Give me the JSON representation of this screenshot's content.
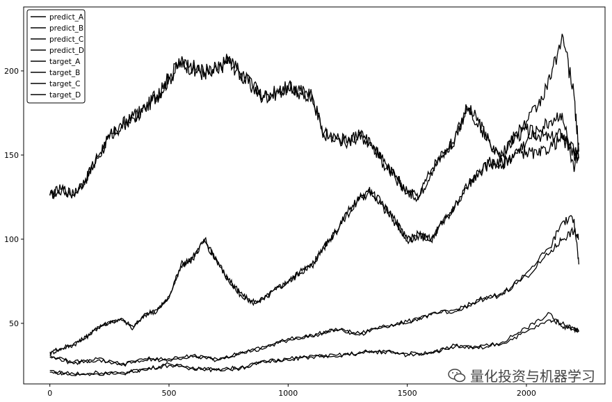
{
  "chart_data": {
    "type": "line",
    "title": "",
    "xlabel": "",
    "ylabel": "",
    "xlim": [
      -110,
      2330
    ],
    "ylim": [
      14,
      238
    ],
    "xticks": [
      0,
      500,
      1000,
      1500,
      2000
    ],
    "yticks": [
      50,
      100,
      150,
      200
    ],
    "grid": false,
    "legend_position": "top-left",
    "line_color": "#000000",
    "series": [
      {
        "name": "predict_A",
        "x": [
          0,
          50,
          100,
          150,
          200,
          250,
          300,
          350,
          400,
          450,
          500,
          550,
          600,
          650,
          700,
          750,
          800,
          850,
          900,
          950,
          1000,
          1050,
          1100,
          1150,
          1200,
          1250,
          1300,
          1350,
          1400,
          1450,
          1500,
          1550,
          1600,
          1650,
          1700,
          1750,
          1800,
          1850,
          1900,
          1950,
          2000,
          2050,
          2100,
          2150,
          2200,
          2220
        ],
        "values": [
          126,
          129,
          127,
          135,
          148,
          160,
          168,
          172,
          178,
          185,
          195,
          205,
          202,
          198,
          200,
          207,
          198,
          190,
          185,
          187,
          190,
          188,
          185,
          163,
          160,
          158,
          162,
          157,
          145,
          137,
          128,
          125,
          140,
          150,
          160,
          178,
          170,
          155,
          150,
          160,
          165,
          162,
          160,
          163,
          152,
          150
        ]
      },
      {
        "name": "predict_B",
        "x": [
          0,
          50,
          100,
          150,
          200,
          250,
          300,
          350,
          400,
          450,
          500,
          550,
          600,
          650,
          700,
          750,
          800,
          850,
          900,
          950,
          1000,
          1050,
          1100,
          1150,
          1200,
          1250,
          1300,
          1350,
          1400,
          1450,
          1500,
          1550,
          1600,
          1650,
          1700,
          1750,
          1800,
          1850,
          1900,
          1950,
          2000,
          2050,
          2100,
          2150,
          2200,
          2220
        ],
        "values": [
          32,
          35,
          37,
          42,
          47,
          51,
          52,
          48,
          55,
          58,
          65,
          85,
          88,
          100,
          88,
          75,
          68,
          62,
          65,
          70,
          75,
          80,
          85,
          95,
          105,
          115,
          125,
          128,
          120,
          110,
          100,
          102,
          100,
          110,
          120,
          130,
          140,
          145,
          145,
          150,
          152,
          150,
          155,
          160,
          150,
          148
        ]
      },
      {
        "name": "predict_C",
        "x": [
          0,
          100,
          200,
          300,
          400,
          500,
          600,
          700,
          800,
          900,
          1000,
          1100,
          1200,
          1300,
          1400,
          1500,
          1600,
          1700,
          1800,
          1900,
          2000,
          2100,
          2150,
          2200,
          2220
        ],
        "values": [
          30,
          27,
          28,
          26,
          28,
          29,
          30,
          29,
          32,
          36,
          40,
          43,
          46,
          44,
          48,
          51,
          55,
          58,
          63,
          68,
          78,
          92,
          100,
          105,
          100
        ]
      },
      {
        "name": "predict_D",
        "x": [
          0,
          100,
          200,
          300,
          400,
          500,
          600,
          700,
          800,
          900,
          1000,
          1100,
          1200,
          1300,
          1400,
          1500,
          1600,
          1700,
          1800,
          1900,
          2000,
          2100,
          2150,
          2200,
          2220
        ],
        "values": [
          22,
          19,
          21,
          20,
          23,
          25,
          24,
          22,
          24,
          27,
          29,
          30,
          31,
          32,
          34,
          31,
          33,
          36,
          36,
          38,
          45,
          52,
          50,
          47,
          46
        ]
      },
      {
        "name": "target_A",
        "x": [
          0,
          50,
          100,
          150,
          200,
          250,
          300,
          350,
          400,
          450,
          500,
          550,
          600,
          650,
          700,
          750,
          800,
          850,
          900,
          950,
          1000,
          1050,
          1100,
          1150,
          1200,
          1250,
          1300,
          1350,
          1400,
          1450,
          1500,
          1550,
          1600,
          1650,
          1700,
          1750,
          1800,
          1850,
          1900,
          1950,
          2000,
          2050,
          2100,
          2150,
          2200,
          2220
        ],
        "values": [
          126,
          130,
          126,
          136,
          149,
          161,
          167,
          173,
          177,
          186,
          196,
          206,
          201,
          199,
          201,
          208,
          197,
          191,
          184,
          188,
          191,
          187,
          186,
          162,
          161,
          157,
          163,
          156,
          146,
          136,
          127,
          126,
          141,
          151,
          159,
          179,
          169,
          156,
          151,
          161,
          170,
          180,
          195,
          222,
          185,
          152
        ]
      },
      {
        "name": "target_B",
        "x": [
          0,
          50,
          100,
          150,
          200,
          250,
          300,
          350,
          400,
          450,
          500,
          550,
          600,
          650,
          700,
          750,
          800,
          850,
          900,
          950,
          1000,
          1050,
          1100,
          1150,
          1200,
          1250,
          1300,
          1350,
          1400,
          1450,
          1500,
          1550,
          1600,
          1650,
          1700,
          1750,
          1800,
          1850,
          1900,
          1950,
          2000,
          2050,
          2100,
          2150,
          2200,
          2220
        ],
        "values": [
          33,
          35,
          38,
          41,
          48,
          50,
          53,
          47,
          56,
          57,
          66,
          84,
          89,
          99,
          87,
          76,
          67,
          63,
          64,
          71,
          74,
          81,
          84,
          96,
          104,
          116,
          124,
          129,
          119,
          111,
          99,
          103,
          99,
          111,
          119,
          131,
          139,
          146,
          144,
          151,
          158,
          165,
          170,
          175,
          140,
          156
        ]
      },
      {
        "name": "target_C",
        "x": [
          0,
          100,
          200,
          300,
          400,
          500,
          600,
          700,
          800,
          900,
          1000,
          1100,
          1200,
          1300,
          1400,
          1500,
          1600,
          1700,
          1800,
          1900,
          2000,
          2100,
          2150,
          2200,
          2220
        ],
        "values": [
          31,
          26,
          29,
          25,
          29,
          28,
          31,
          28,
          33,
          35,
          41,
          42,
          47,
          43,
          49,
          50,
          56,
          57,
          64,
          67,
          80,
          95,
          110,
          112,
          85
        ]
      },
      {
        "name": "target_D",
        "x": [
          0,
          100,
          200,
          300,
          400,
          500,
          600,
          700,
          800,
          900,
          1000,
          1100,
          1200,
          1300,
          1400,
          1500,
          1600,
          1700,
          1800,
          1900,
          2000,
          2100,
          2150,
          2200,
          2220
        ],
        "values": [
          21,
          20,
          20,
          21,
          22,
          26,
          23,
          23,
          23,
          28,
          28,
          31,
          30,
          33,
          33,
          32,
          32,
          37,
          35,
          39,
          47,
          56,
          48,
          46,
          45
        ]
      }
    ]
  },
  "watermark": {
    "text": "量化投资与机器学习",
    "icon": "wechat-icon"
  }
}
